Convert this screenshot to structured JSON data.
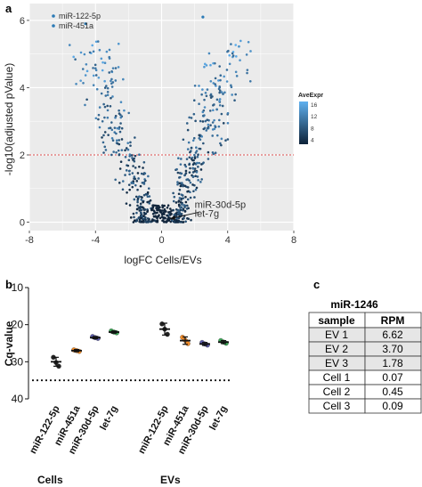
{
  "panels": {
    "a": "a",
    "b": "b",
    "c": "c"
  },
  "chart_data": [
    {
      "type": "scatter",
      "panel": "a",
      "xlabel": "logFC Cells/EVs",
      "ylabel": "-log10(adjusted pValue)",
      "xlim": [
        -8,
        8
      ],
      "ylim": [
        -0.25,
        6.5
      ],
      "xticks": [
        -8,
        -4,
        0,
        4,
        8
      ],
      "yticks": [
        0,
        2,
        4,
        6
      ],
      "grid": true,
      "threshold_y": 2,
      "legend_position": "top-left",
      "series": [
        {
          "name": "miR-122-5p",
          "color": "#2c7bb6",
          "x": [
            2.5
          ],
          "y": [
            6.1
          ]
        },
        {
          "name": "miR-451a",
          "color": "#2c7bb6",
          "x": [
            -4.6
          ],
          "y": [
            5.9
          ]
        }
      ],
      "annotation": {
        "labels": [
          "miR-30d-5p",
          "let-7g"
        ],
        "x": 0.5,
        "y": 0.1
      },
      "color_scale": {
        "title": "AveExpr",
        "ticks": [
          16,
          12,
          8,
          4
        ],
        "low_color": "#0e2238",
        "high_color": "#5fb0ef"
      }
    },
    {
      "type": "scatter",
      "panel": "b",
      "ylabel": "Cq-value",
      "ylim": [
        10,
        40
      ],
      "yticks": [
        10,
        20,
        30,
        40
      ],
      "y_inverted": true,
      "reference_line_y": 35,
      "groups": [
        "Cells",
        "EVs"
      ],
      "categories": [
        "miR-122-5p",
        "miR-451a",
        "miR-30d-5p",
        "let-7g",
        "miR-122-5p",
        "miR-451a",
        "miR-30d-5p",
        "let-7g"
      ],
      "category_group": [
        "Cells",
        "Cells",
        "Cells",
        "Cells",
        "EVs",
        "EVs",
        "EVs",
        "EVs"
      ],
      "colors": [
        "#222222",
        "#f28c28",
        "#5a5aa8",
        "#3aa655",
        "#222222",
        "#f28c28",
        "#5a5aa8",
        "#3aa655"
      ],
      "means": [
        30.0,
        27.0,
        23.5,
        22.0,
        21.2,
        24.3,
        25.2,
        24.7
      ],
      "sem": [
        1.2,
        0.3,
        0.3,
        0.3,
        1.6,
        1.0,
        0.4,
        0.4
      ],
      "points": [
        [
          28.8,
          30.2,
          31.2
        ],
        [
          26.8,
          27.0,
          27.2
        ],
        [
          23.2,
          23.5,
          23.7
        ],
        [
          21.7,
          22.0,
          22.2
        ],
        [
          19.8,
          21.2,
          22.6
        ],
        [
          23.4,
          24.2,
          25.1
        ],
        [
          24.8,
          25.2,
          25.5
        ],
        [
          24.3,
          24.7,
          25.0
        ]
      ]
    },
    {
      "type": "table",
      "panel": "c",
      "title": "miR-1246",
      "columns": [
        "sample",
        "RPM"
      ],
      "rows": [
        {
          "sample": "EV 1",
          "rpm": "6.62",
          "shaded": true
        },
        {
          "sample": "EV 2",
          "rpm": "3.70",
          "shaded": true
        },
        {
          "sample": "EV 3",
          "rpm": "1.78",
          "shaded": true
        },
        {
          "sample": "Cell 1",
          "rpm": "0.07",
          "shaded": false
        },
        {
          "sample": "Cell 2",
          "rpm": "0.45",
          "shaded": false
        },
        {
          "sample": "Cell 3",
          "rpm": "0.09",
          "shaded": false
        }
      ]
    }
  ]
}
